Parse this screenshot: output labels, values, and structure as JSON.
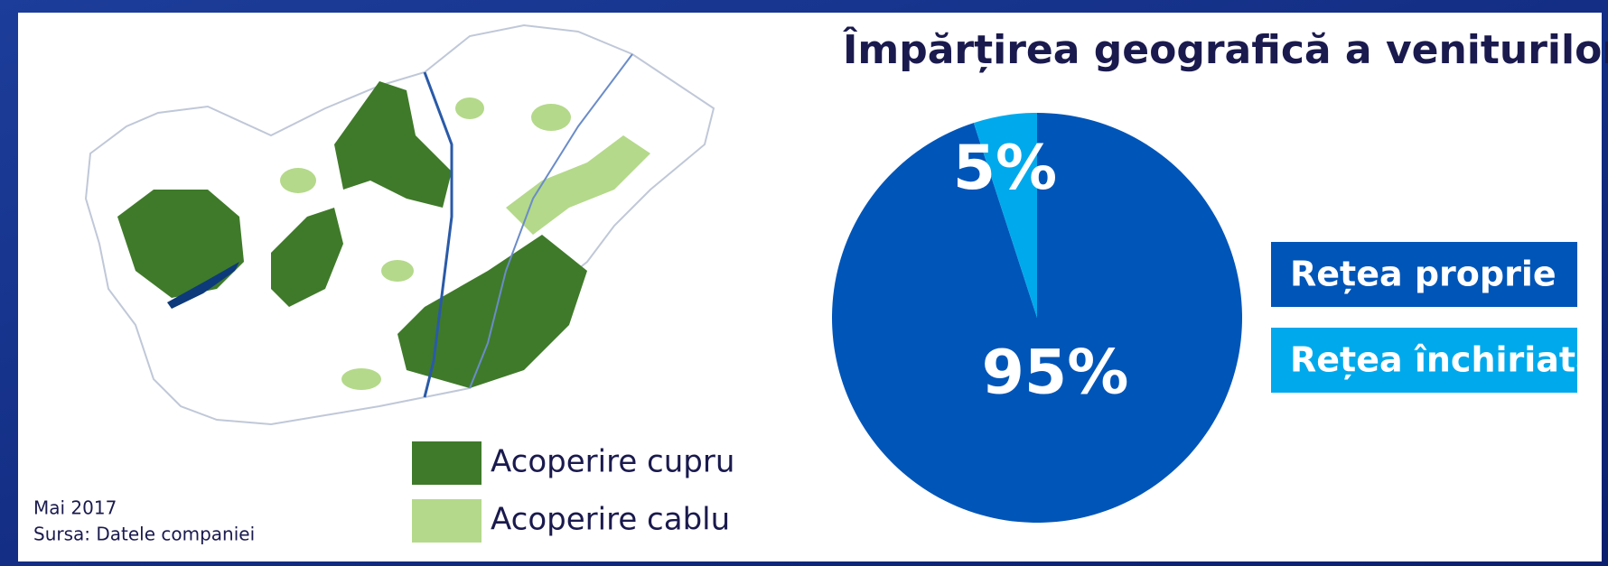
{
  "chart_data": {
    "type": "pie",
    "title": "Împărțirea geografică a veniturilor",
    "categories": [
      "Rețea proprie",
      "Rețea închiriată"
    ],
    "values": [
      95,
      5
    ],
    "value_labels": [
      "95%",
      "5%"
    ],
    "colors": [
      "#0055b8",
      "#00a9ec"
    ],
    "legend": "right"
  },
  "map": {
    "legend": [
      {
        "label": "Acoperire cupru",
        "color": "#3f7a2a"
      },
      {
        "label": "Acoperire cablu",
        "color": "#b4d98a"
      }
    ],
    "notes": [
      "Mai 2017",
      "Sursa: Datele companiei"
    ]
  }
}
